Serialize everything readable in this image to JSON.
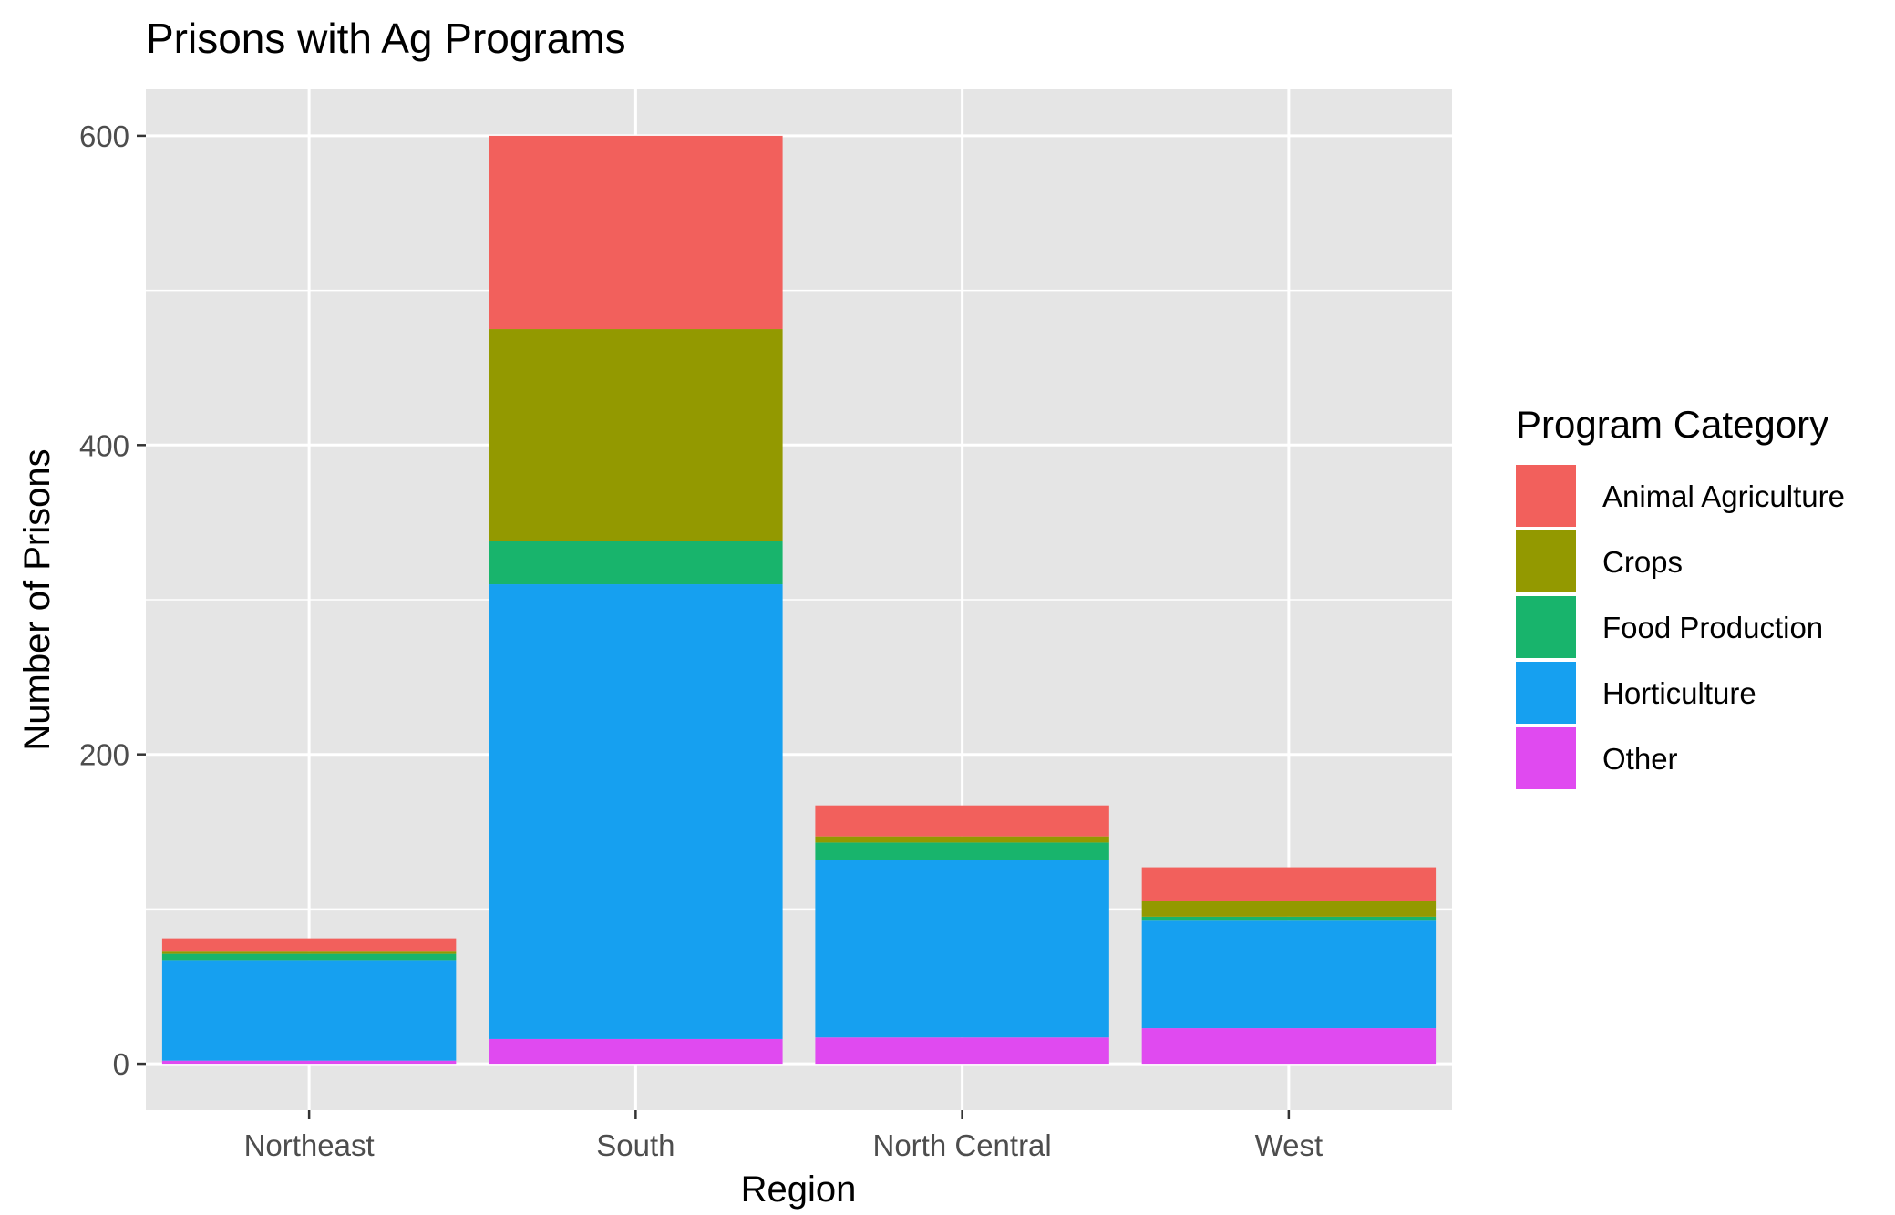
{
  "chart_data": {
    "type": "bar",
    "stacked": true,
    "title": "Prisons with Ag Programs",
    "xlabel": "Region",
    "ylabel": "Number of Prisons",
    "categories": [
      "Northeast",
      "South",
      "North Central",
      "West"
    ],
    "ylim": [
      -30,
      630
    ],
    "yticks": [
      0,
      200,
      400,
      600
    ],
    "grid": true,
    "legend": {
      "title": "Program Category",
      "placement": "right"
    },
    "series": [
      {
        "name": "Other",
        "color": "#E04AF0",
        "values": [
          2,
          16,
          17,
          23
        ]
      },
      {
        "name": "Horticulture",
        "color": "#16A0F0",
        "values": [
          65,
          294,
          115,
          70
        ]
      },
      {
        "name": "Food Production",
        "color": "#18B46C",
        "values": [
          4,
          28,
          11,
          2
        ]
      },
      {
        "name": "Crops",
        "color": "#939900",
        "values": [
          2,
          137,
          4,
          10
        ]
      },
      {
        "name": "Animal Agriculture",
        "color": "#F2605C",
        "values": [
          8,
          125,
          20,
          22
        ]
      }
    ],
    "legend_order": [
      "Animal Agriculture",
      "Crops",
      "Food Production",
      "Horticulture",
      "Other"
    ]
  }
}
